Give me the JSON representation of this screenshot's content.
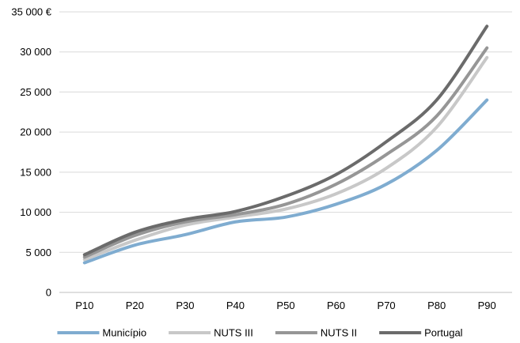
{
  "chart_data": {
    "type": "line",
    "title": "",
    "xlabel": "",
    "ylabel": "",
    "categories": [
      "P10",
      "P20",
      "P30",
      "P40",
      "P50",
      "P60",
      "P70",
      "P80",
      "P90"
    ],
    "ylim": [
      0,
      35000
    ],
    "yticks": [
      0,
      5000,
      10000,
      15000,
      20000,
      25000,
      30000,
      35000
    ],
    "ytick_labels": [
      "0",
      "5 000",
      "10 000",
      "15 000",
      "20 000",
      "25 000",
      "30 000",
      "35 000 €"
    ],
    "grid": "horizontal",
    "legend_position": "bottom",
    "series": [
      {
        "name": "Município",
        "color": "#7facd0",
        "values": [
          3700,
          5900,
          7200,
          8800,
          9400,
          11000,
          13500,
          17700,
          24000
        ]
      },
      {
        "name": "NUTS III",
        "color": "#c8c8c8",
        "values": [
          4100,
          6500,
          8400,
          9400,
          10400,
          12300,
          15500,
          20600,
          29300
        ]
      },
      {
        "name": "NUTS II",
        "color": "#969696",
        "values": [
          4400,
          7100,
          8800,
          9700,
          11000,
          13500,
          17200,
          22000,
          30500
        ]
      },
      {
        "name": "Portugal",
        "color": "#6b6b6b",
        "values": [
          4700,
          7500,
          9100,
          10100,
          12000,
          14700,
          18800,
          24000,
          33200
        ]
      }
    ]
  }
}
